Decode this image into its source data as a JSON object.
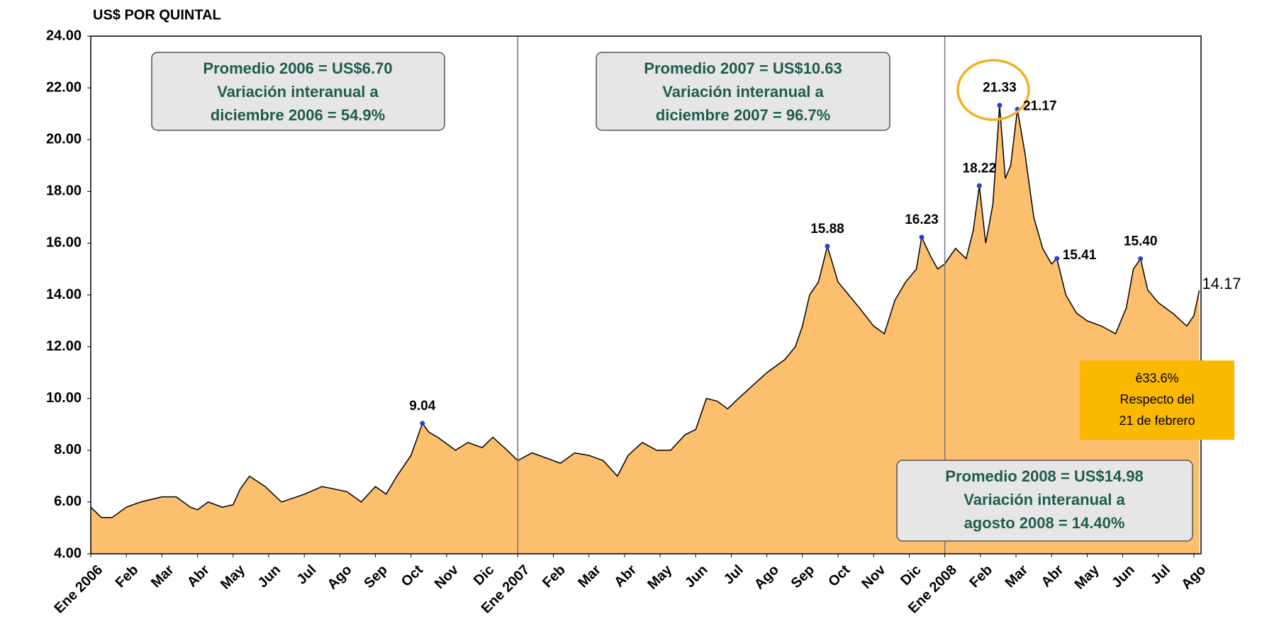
{
  "chart_data": {
    "type": "area",
    "ylabel": "US$ POR QUINTAL",
    "fill_color": "#fbbf6d",
    "line_color": "#000000",
    "point_color": "#2a3fd6",
    "xlim": [
      0,
      31.2
    ],
    "ylim": [
      4,
      24
    ],
    "yticks": [
      {
        "value": 4,
        "label": "4.00"
      },
      {
        "value": 6,
        "label": "6.00"
      },
      {
        "value": 8,
        "label": "8.00"
      },
      {
        "value": 10,
        "label": "10.00"
      },
      {
        "value": 12,
        "label": "12.00"
      },
      {
        "value": 14,
        "label": "14.00"
      },
      {
        "value": 16,
        "label": "16.00"
      },
      {
        "value": 18,
        "label": "18.00"
      },
      {
        "value": 20,
        "label": "20.00"
      },
      {
        "value": 22,
        "label": "22.00"
      },
      {
        "value": 24,
        "label": "24.00"
      }
    ],
    "xticks": [
      {
        "value": 0,
        "label": "Ene 2006",
        "color": "#ff0000"
      },
      {
        "value": 1,
        "label": "Feb"
      },
      {
        "value": 2,
        "label": "Mar"
      },
      {
        "value": 3,
        "label": "Abr"
      },
      {
        "value": 4,
        "label": "May"
      },
      {
        "value": 5,
        "label": "Jun"
      },
      {
        "value": 6,
        "label": "Jul"
      },
      {
        "value": 7,
        "label": "Ago"
      },
      {
        "value": 8,
        "label": "Sep"
      },
      {
        "value": 9,
        "label": "Oct"
      },
      {
        "value": 10,
        "label": "Nov"
      },
      {
        "value": 11,
        "label": "Dic"
      },
      {
        "value": 12,
        "label": "Ene 2007",
        "color": "#ff0000"
      },
      {
        "value": 13,
        "label": "Feb"
      },
      {
        "value": 14,
        "label": "Mar"
      },
      {
        "value": 15,
        "label": "Abr"
      },
      {
        "value": 16,
        "label": "May"
      },
      {
        "value": 17,
        "label": "Jun"
      },
      {
        "value": 18,
        "label": "Jul"
      },
      {
        "value": 19,
        "label": "Ago"
      },
      {
        "value": 20,
        "label": "Sep"
      },
      {
        "value": 21,
        "label": "Oct"
      },
      {
        "value": 22,
        "label": "Nov"
      },
      {
        "value": 23,
        "label": "Dic"
      },
      {
        "value": 24,
        "label": "Ene 2008",
        "color": "#ff0000"
      },
      {
        "value": 25,
        "label": "Feb"
      },
      {
        "value": 26,
        "label": "Mar"
      },
      {
        "value": 27,
        "label": "Abr"
      },
      {
        "value": 28,
        "label": "May"
      },
      {
        "value": 29,
        "label": "Jun"
      },
      {
        "value": 30,
        "label": "Jul"
      },
      {
        "value": 31,
        "label": "Ago"
      }
    ],
    "dividers": [
      12,
      24
    ],
    "x": [
      0,
      0.3,
      0.6,
      1.0,
      1.4,
      2.0,
      2.4,
      2.8,
      3.0,
      3.3,
      3.7,
      4.0,
      4.2,
      4.46,
      4.9,
      5.36,
      6.0,
      6.5,
      7.2,
      7.6,
      8.0,
      8.3,
      8.6,
      9.0,
      9.32,
      9.5,
      9.75,
      10.25,
      10.6,
      11.0,
      11.3,
      11.7,
      12.0,
      12.4,
      12.8,
      13.2,
      13.6,
      14.0,
      14.4,
      14.8,
      15.1,
      15.5,
      15.9,
      16.3,
      16.7,
      17.0,
      17.3,
      17.6,
      17.9,
      18.2,
      18.6,
      19.0,
      19.5,
      19.8,
      20.0,
      20.2,
      20.45,
      20.7,
      21.0,
      21.3,
      21.6,
      22.0,
      22.3,
      22.6,
      22.9,
      23.2,
      23.35,
      23.6,
      23.8,
      24.0,
      24.3,
      24.6,
      24.8,
      24.97,
      25.15,
      25.35,
      25.54,
      25.7,
      25.85,
      26.04,
      26.25,
      26.5,
      26.75,
      27.0,
      27.15,
      27.4,
      27.7,
      28.0,
      28.4,
      28.8,
      29.1,
      29.3,
      29.5,
      29.7,
      30.0,
      30.4,
      30.8,
      31.0,
      31.15
    ],
    "values": [
      5.8,
      5.4,
      5.4,
      5.8,
      6.0,
      6.2,
      6.2,
      5.8,
      5.7,
      6.0,
      5.8,
      5.9,
      6.5,
      7.0,
      6.6,
      6.0,
      6.3,
      6.6,
      6.4,
      6.0,
      6.6,
      6.3,
      7.0,
      7.8,
      9.04,
      8.7,
      8.5,
      8.0,
      8.3,
      8.1,
      8.5,
      8.0,
      7.6,
      7.9,
      7.7,
      7.5,
      7.9,
      7.8,
      7.6,
      7.0,
      7.8,
      8.3,
      8.0,
      8.0,
      8.6,
      8.8,
      10.0,
      9.9,
      9.6,
      10.0,
      10.5,
      11.0,
      11.5,
      12.0,
      12.8,
      14.0,
      14.5,
      15.88,
      14.5,
      14.0,
      13.5,
      12.8,
      12.5,
      13.8,
      14.5,
      15.0,
      16.23,
      15.5,
      15.0,
      15.2,
      15.8,
      15.4,
      16.5,
      18.22,
      16.0,
      17.5,
      21.33,
      18.5,
      19.0,
      21.17,
      19.5,
      17.0,
      15.8,
      15.2,
      15.41,
      14.0,
      13.3,
      13.0,
      12.8,
      12.5,
      13.5,
      15.0,
      15.4,
      14.2,
      13.7,
      13.3,
      12.8,
      13.2,
      14.17
    ],
    "value_labels": [
      null,
      null,
      null,
      null,
      null,
      null,
      null,
      null,
      null,
      null,
      null,
      null,
      null,
      null,
      null,
      null,
      null,
      null,
      null,
      null,
      null,
      null,
      null,
      null,
      "9.04",
      null,
      null,
      null,
      null,
      null,
      null,
      null,
      null,
      null,
      null,
      null,
      null,
      null,
      null,
      null,
      null,
      null,
      null,
      null,
      null,
      null,
      null,
      null,
      null,
      null,
      null,
      null,
      null,
      null,
      null,
      null,
      null,
      "15.88",
      null,
      null,
      null,
      null,
      null,
      null,
      null,
      null,
      "16.23",
      null,
      null,
      null,
      null,
      null,
      null,
      "18.22",
      null,
      null,
      "21.33",
      null,
      null,
      "21.17",
      null,
      null,
      null,
      null,
      "15.41",
      null,
      null,
      null,
      null,
      null,
      null,
      null,
      "15.40",
      null,
      null,
      null,
      null,
      null,
      "14.17"
    ],
    "annotations": [
      {
        "lines": [
          "Promedio 2006 = US$6.70",
          "Variación interanual a",
          "diciembre 2006 = 54.9%"
        ]
      },
      {
        "lines": [
          "Promedio 2007 = US$10.63",
          "Variación interanual a",
          "diciembre 2007 = 96.7%"
        ]
      },
      {
        "lines": [
          "Promedio 2008 = US$14.98",
          "Variación interanual a",
          "agosto 2008 = 14.40%"
        ]
      }
    ],
    "callout": {
      "lines": [
        "ê33.6%",
        "Respecto  del",
        "21 de febrero"
      ]
    }
  }
}
